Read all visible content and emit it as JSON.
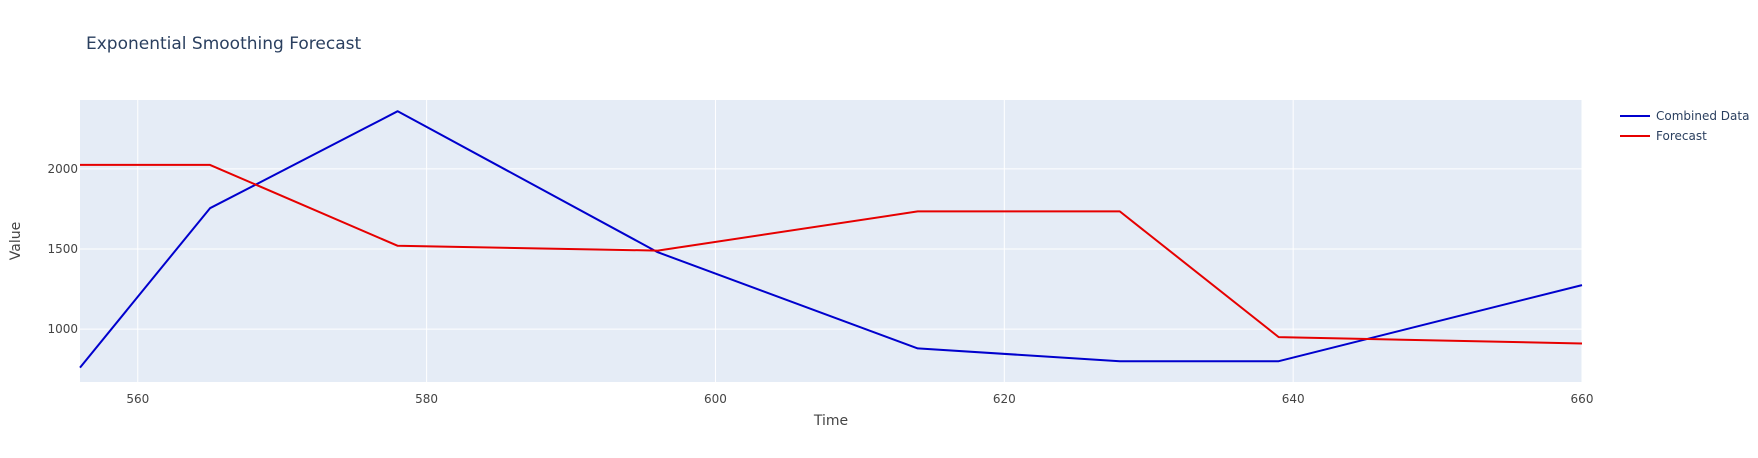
{
  "chart_data": {
    "type": "line",
    "title": "Exponential Smoothing Forecast",
    "xlabel": "Time",
    "ylabel": "Value",
    "xlim": [
      556,
      660
    ],
    "ylim": [
      670,
      2430
    ],
    "x_ticks": [
      560,
      580,
      600,
      620,
      640,
      660
    ],
    "y_ticks": [
      1000,
      1500,
      2000
    ],
    "grid": true,
    "legend_position": "top-right",
    "plot_background": "#e5ecf6",
    "series": [
      {
        "name": "Combined Data",
        "color": "#0000cd",
        "x": [
          556,
          565,
          578,
          596,
          614,
          628,
          639,
          660
        ],
        "y": [
          760,
          1755,
          2360,
          1480,
          880,
          800,
          800,
          1275
        ]
      },
      {
        "name": "Forecast",
        "color": "#e60000",
        "x": [
          556,
          565,
          578,
          596,
          614,
          628,
          639,
          660
        ],
        "y": [
          2025,
          2025,
          1520,
          1490,
          1735,
          1735,
          950,
          910
        ]
      }
    ]
  }
}
